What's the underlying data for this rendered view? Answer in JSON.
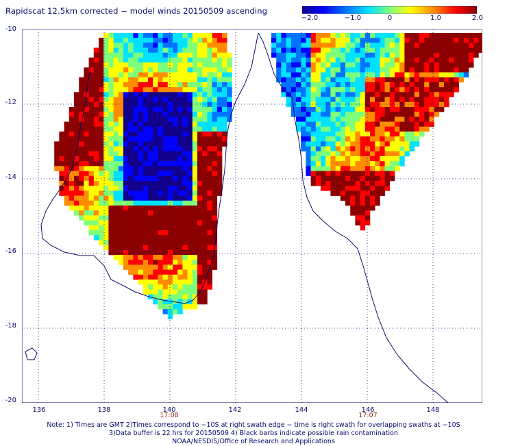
{
  "title": "Rapidscat 12.5km corrected − model winds 20150509 ascending",
  "colorbar": {
    "ticks": [
      "−2.0",
      "−1.0",
      "0",
      "1.0",
      "2.0"
    ],
    "min": -2.0,
    "max": 2.0,
    "colors": [
      "#12008a",
      "#0000ff",
      "#0074ff",
      "#00e2ff",
      "#7dff7a",
      "#ffff00",
      "#ff8c00",
      "#ff0000",
      "#8b0000"
    ]
  },
  "axes": {
    "lon_ticks": [
      "136",
      "138",
      "140",
      "142",
      "144",
      "146",
      "148"
    ],
    "lat_ticks": [
      "-10",
      "-12",
      "-14",
      "-16",
      "-18",
      "-20"
    ],
    "lon_range": [
      135.5,
      149.5
    ],
    "lat_range": [
      -20,
      -10
    ]
  },
  "times": [
    {
      "label": "17:08",
      "lon": 140
    },
    {
      "label": "17:07",
      "lon": 146
    }
  ],
  "notes": [
    "Note: 1) Times are GMT 2)Times correspond to −10S at right swath edge − time is right swath for overlapping swaths at −10S",
    "3)Data buffer is 22 hrs for 20150509 4) Black barbs indicate possible rain contamination",
    "NOAA/NESDIS/Office of Research and Applications"
  ]
}
